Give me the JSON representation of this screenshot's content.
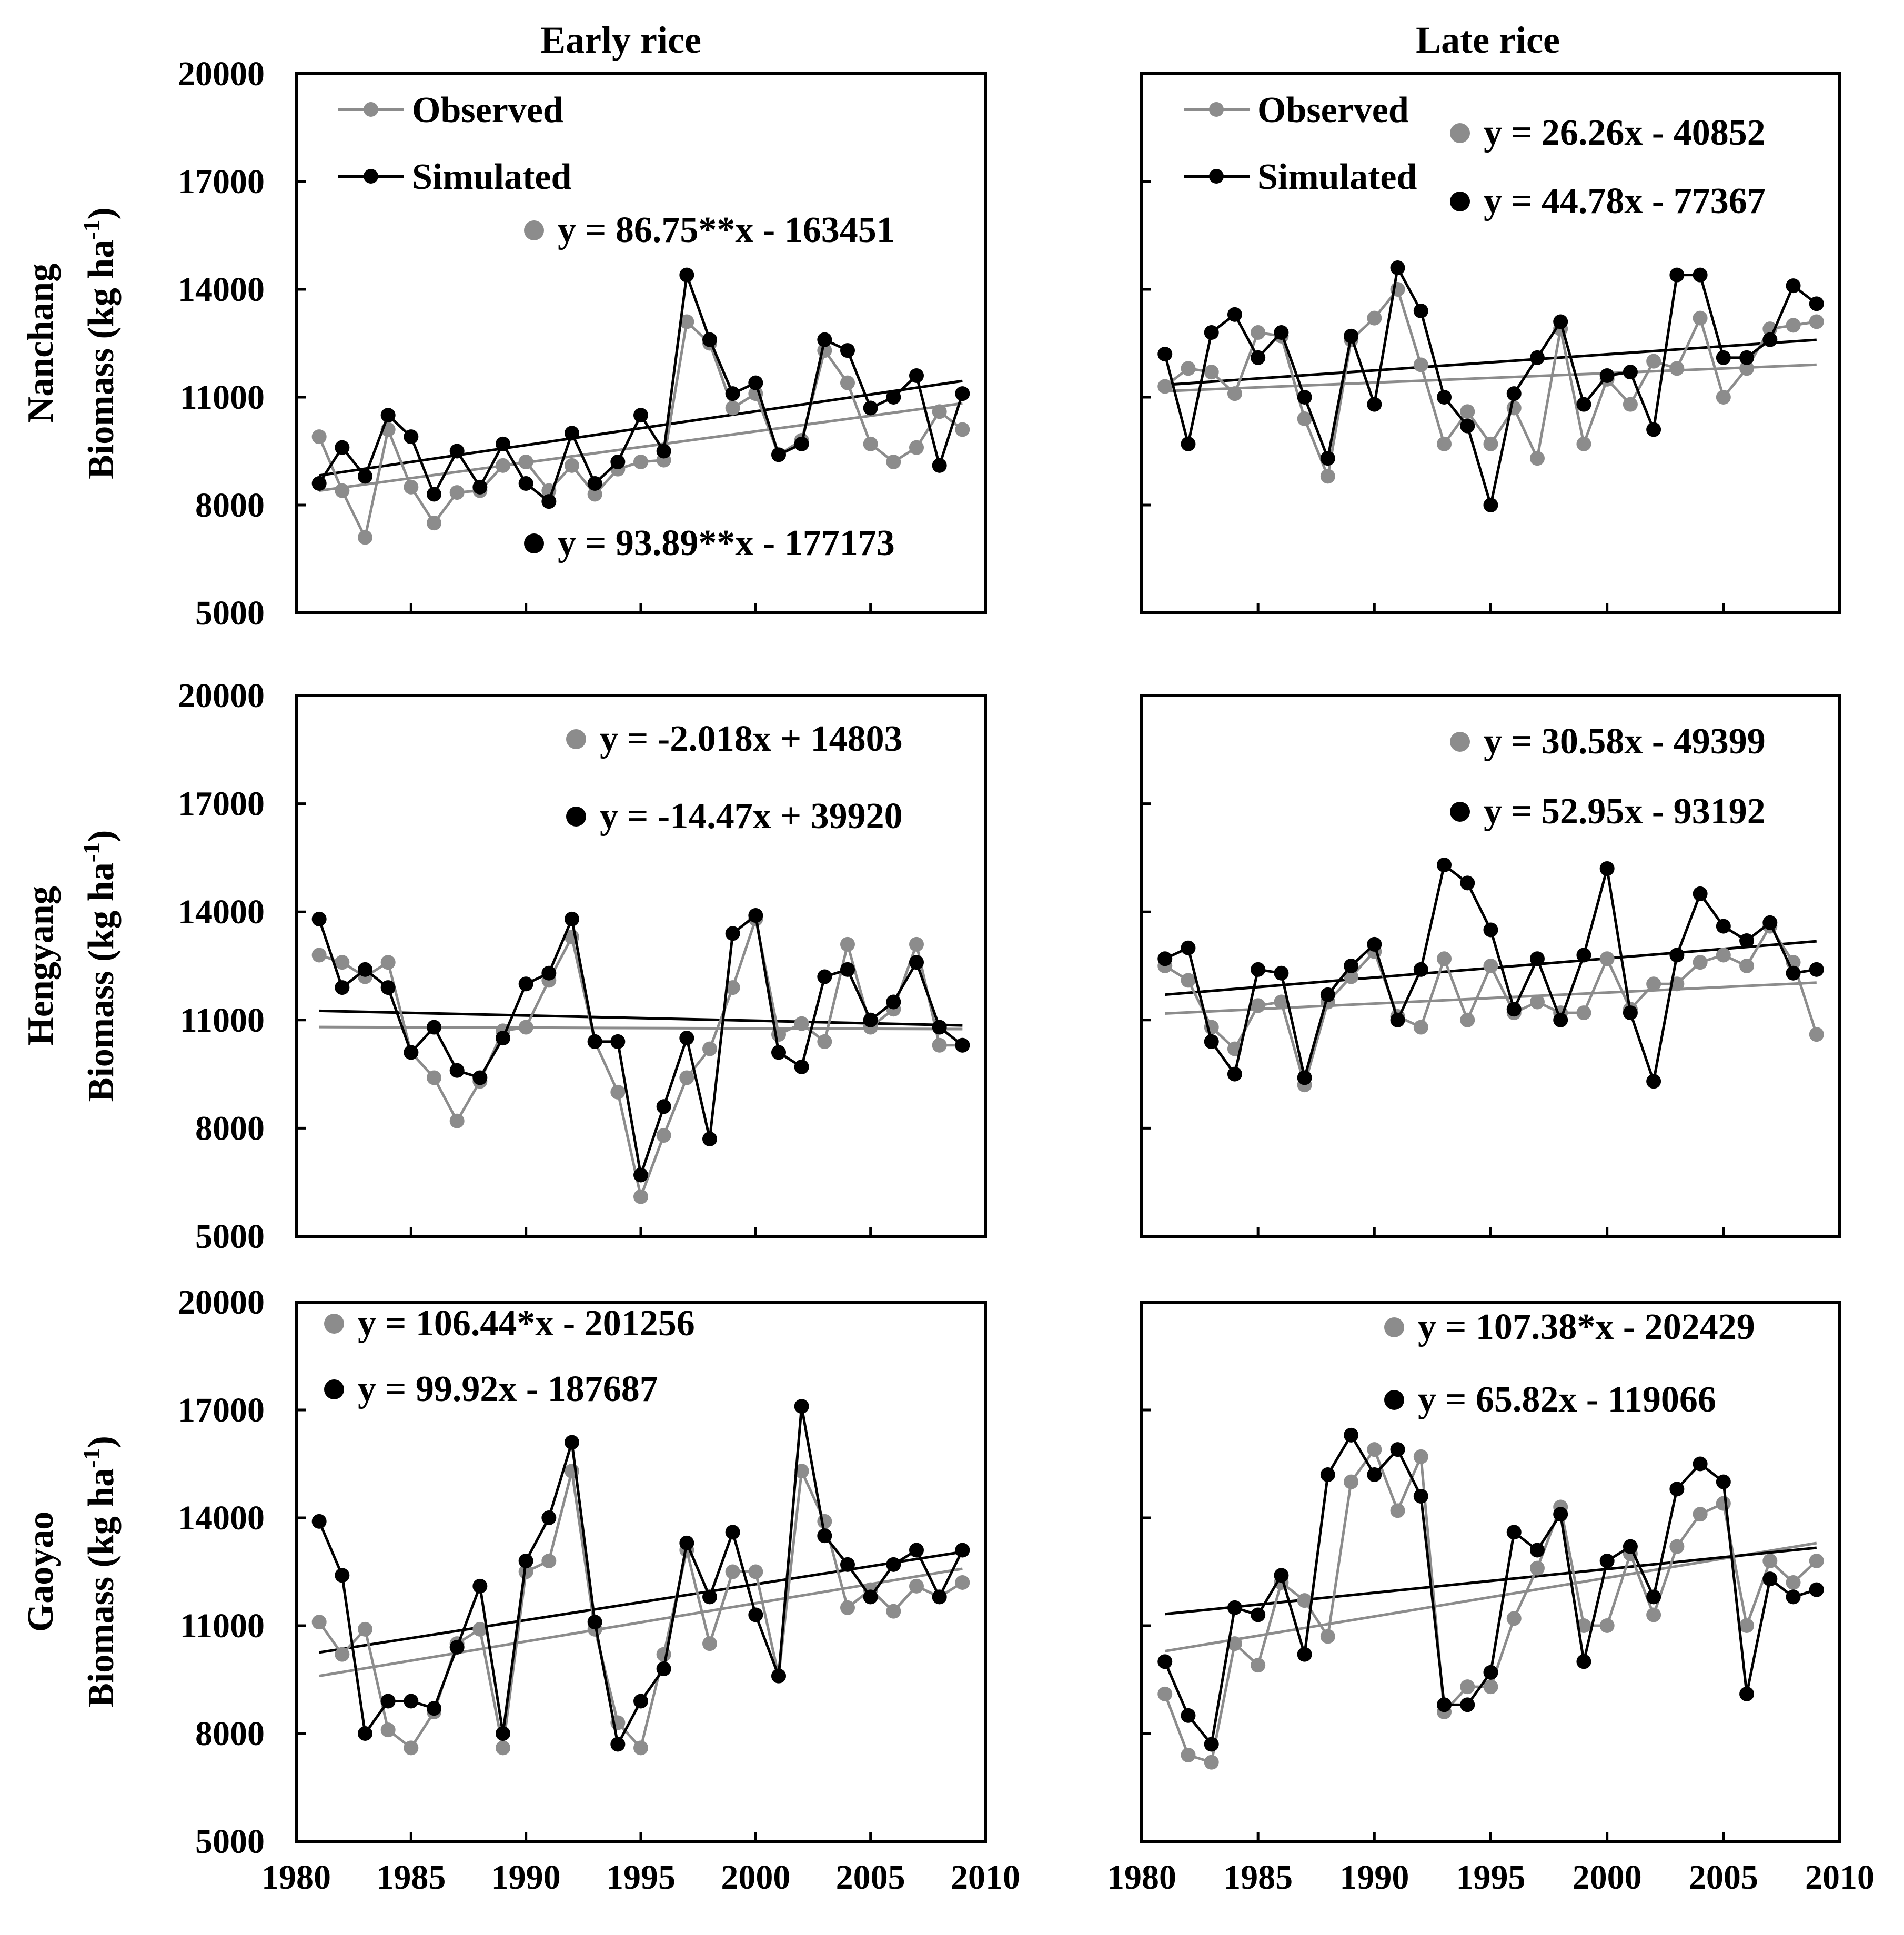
{
  "figure": {
    "column_titles": [
      "Early rice",
      "Late rice"
    ],
    "row_labels": [
      "Nanchang",
      "Hengyang",
      "Gaoyao"
    ],
    "y_axis_label": "Biomass (kg ha",
    "y_axis_label_sup": "-1",
    "y_axis_label_close": ")",
    "y_ticks": [
      "20000",
      "17000",
      "14000",
      "11000",
      "8000",
      "5000"
    ],
    "x_ticks": [
      "1980",
      "1985",
      "1990",
      "1995",
      "2000",
      "2005",
      "2010"
    ],
    "legend": {
      "observed": "Observed",
      "simulated": "Simulated"
    }
  },
  "colors": {
    "observed": "#8c8c8c",
    "simulated": "#000000"
  },
  "chart_data": [
    {
      "type": "line",
      "site": "Nanchang",
      "season": "Early rice",
      "xlim": [
        1980,
        2010
      ],
      "ylim": [
        5000,
        20000
      ],
      "legend": "top-left",
      "x": [
        1981,
        1982,
        1983,
        1984,
        1985,
        1986,
        1987,
        1988,
        1989,
        1990,
        1991,
        1992,
        1993,
        1994,
        1995,
        1996,
        1997,
        1998,
        1999,
        2000,
        2001,
        2002,
        2003,
        2004,
        2005,
        2006,
        2007,
        2008,
        2009
      ],
      "series": [
        {
          "name": "Observed",
          "values": [
            9900,
            8400,
            7100,
            10100,
            8500,
            7500,
            8350,
            8400,
            9100,
            9200,
            8400,
            9100,
            8300,
            9000,
            9200,
            9250,
            13100,
            12500,
            10700,
            11100,
            9400,
            9800,
            12300,
            11400,
            9700,
            9200,
            9600,
            10600,
            10100
          ]
        },
        {
          "name": "Simulated",
          "values": [
            8600,
            9600,
            8800,
            10500,
            9900,
            8300,
            9500,
            8500,
            9700,
            8600,
            8100,
            10000,
            8600,
            9200,
            10500,
            9500,
            14400,
            12600,
            11100,
            11400,
            9400,
            9700,
            12600,
            12300,
            10700,
            11000,
            11600,
            9100,
            11100
          ]
        }
      ],
      "trends": [
        {
          "name": "Observed",
          "equation": "y = 86.75**x - 163451",
          "slope": 86.75,
          "intercept": -163451
        },
        {
          "name": "Simulated",
          "equation": "y = 93.89**x - 177173",
          "slope": 93.89,
          "intercept": -177173
        }
      ]
    },
    {
      "type": "line",
      "site": "Nanchang",
      "season": "Late rice",
      "xlim": [
        1980,
        2010
      ],
      "ylim": [
        5000,
        20000
      ],
      "legend": "top-left",
      "x": [
        1981,
        1982,
        1983,
        1984,
        1985,
        1986,
        1987,
        1988,
        1989,
        1990,
        1991,
        1992,
        1993,
        1994,
        1995,
        1996,
        1997,
        1998,
        1999,
        2000,
        2001,
        2002,
        2003,
        2004,
        2005,
        2006,
        2007,
        2008,
        2009
      ],
      "series": [
        {
          "name": "Observed",
          "values": [
            11300,
            11800,
            11700,
            11100,
            12800,
            12700,
            10400,
            8800,
            12600,
            13200,
            14000,
            11900,
            9700,
            10600,
            9700,
            10700,
            9300,
            12900,
            9700,
            11500,
            10800,
            12000,
            11800,
            13200,
            11000,
            11800,
            12900,
            13000,
            13100
          ]
        },
        {
          "name": "Simulated",
          "values": [
            12200,
            9700,
            12800,
            13300,
            12100,
            12800,
            11000,
            9300,
            12700,
            10800,
            14600,
            13400,
            11000,
            10200,
            8000,
            11100,
            12100,
            13100,
            10800,
            11600,
            11700,
            10100,
            14400,
            14400,
            12100,
            12100,
            12600,
            14100,
            13600
          ]
        }
      ],
      "trends": [
        {
          "name": "Observed",
          "equation": "y = 26.26x - 40852",
          "slope": 26.26,
          "intercept": -40852
        },
        {
          "name": "Simulated",
          "equation": "y = 44.78x - 77367",
          "slope": 44.78,
          "intercept": -77367
        }
      ]
    },
    {
      "type": "line",
      "site": "Hengyang",
      "season": "Early rice",
      "xlim": [
        1980,
        2010
      ],
      "ylim": [
        5000,
        20000
      ],
      "x": [
        1981,
        1982,
        1983,
        1984,
        1985,
        1986,
        1987,
        1988,
        1989,
        1990,
        1991,
        1992,
        1993,
        1994,
        1995,
        1996,
        1997,
        1998,
        1999,
        2000,
        2001,
        2002,
        2003,
        2004,
        2005,
        2006,
        2007,
        2008,
        2009
      ],
      "series": [
        {
          "name": "Observed",
          "values": [
            12800,
            12600,
            12200,
            12600,
            10100,
            9400,
            8200,
            9300,
            10700,
            10800,
            12100,
            13300,
            10400,
            9000,
            6100,
            7800,
            9400,
            10200,
            11900,
            13800,
            10600,
            10900,
            10400,
            13100,
            10800,
            11300,
            13100,
            10300,
            10300
          ]
        },
        {
          "name": "Simulated",
          "values": [
            13800,
            11900,
            12400,
            11900,
            10100,
            10800,
            9600,
            9400,
            10500,
            12000,
            12300,
            13800,
            10400,
            10400,
            6700,
            8600,
            10500,
            7700,
            13400,
            13900,
            10100,
            9700,
            12200,
            12400,
            11000,
            11500,
            12600,
            10800,
            10300
          ]
        }
      ],
      "trends": [
        {
          "name": "Observed",
          "equation": "y = -2.018x + 14803",
          "slope": -2.018,
          "intercept": 14803
        },
        {
          "name": "Simulated",
          "equation": "y = -14.47x + 39920",
          "slope": -14.47,
          "intercept": 39920
        }
      ]
    },
    {
      "type": "line",
      "site": "Hengyang",
      "season": "Late rice",
      "xlim": [
        1980,
        2010
      ],
      "ylim": [
        5000,
        20000
      ],
      "x": [
        1981,
        1982,
        1983,
        1984,
        1985,
        1986,
        1987,
        1988,
        1989,
        1990,
        1991,
        1992,
        1993,
        1994,
        1995,
        1996,
        1997,
        1998,
        1999,
        2000,
        2001,
        2002,
        2003,
        2004,
        2005,
        2006,
        2007,
        2008,
        2009
      ],
      "series": [
        {
          "name": "Observed",
          "values": [
            12500,
            12100,
            10800,
            10200,
            11400,
            11500,
            9200,
            11500,
            12200,
            12900,
            11100,
            10800,
            12700,
            11000,
            12500,
            11200,
            11500,
            11200,
            11200,
            12700,
            11300,
            12000,
            12000,
            12600,
            12800,
            12500,
            13600,
            12600,
            10600
          ]
        },
        {
          "name": "Simulated",
          "values": [
            12700,
            13000,
            10400,
            9500,
            12400,
            12300,
            9400,
            11700,
            12500,
            13100,
            11000,
            12400,
            15300,
            14800,
            13500,
            11300,
            12700,
            11000,
            12800,
            15200,
            11200,
            9300,
            12800,
            14500,
            13600,
            13200,
            13700,
            12300,
            12400
          ]
        }
      ],
      "trends": [
        {
          "name": "Observed",
          "equation": "y = 30.58x - 49399",
          "slope": 30.58,
          "intercept": -49399
        },
        {
          "name": "Simulated",
          "equation": "y = 52.95x - 93192",
          "slope": 52.95,
          "intercept": -93192
        }
      ]
    },
    {
      "type": "line",
      "site": "Gaoyao",
      "season": "Early rice",
      "xlim": [
        1980,
        2010
      ],
      "ylim": [
        5000,
        20000
      ],
      "x": [
        1981,
        1982,
        1983,
        1984,
        1985,
        1986,
        1987,
        1988,
        1989,
        1990,
        1991,
        1992,
        1993,
        1994,
        1995,
        1996,
        1997,
        1998,
        1999,
        2000,
        2001,
        2002,
        2003,
        2004,
        2005,
        2006,
        2007,
        2008,
        2009
      ],
      "series": [
        {
          "name": "Observed",
          "values": [
            11100,
            10200,
            10900,
            8100,
            7600,
            8600,
            10500,
            10900,
            7600,
            12500,
            12800,
            15300,
            10900,
            8300,
            7600,
            10200,
            13100,
            10500,
            12500,
            12500,
            9600,
            15300,
            13900,
            11500,
            12000,
            11400,
            12100,
            11800,
            12200
          ]
        },
        {
          "name": "Simulated",
          "values": [
            13900,
            12400,
            8000,
            8900,
            8900,
            8700,
            10400,
            12100,
            8000,
            12800,
            14000,
            16100,
            11100,
            7700,
            8900,
            9800,
            13300,
            11800,
            13600,
            11300,
            9600,
            17100,
            13500,
            12700,
            11800,
            12700,
            13100,
            11800,
            13100
          ]
        }
      ],
      "trends": [
        {
          "name": "Observed",
          "equation": "y = 106.44*x - 201256",
          "slope": 106.44,
          "intercept": -201256
        },
        {
          "name": "Simulated",
          "equation": "y = 99.92x - 187687",
          "slope": 99.92,
          "intercept": -187687
        }
      ]
    },
    {
      "type": "line",
      "site": "Gaoyao",
      "season": "Late rice",
      "xlim": [
        1980,
        2010
      ],
      "ylim": [
        5000,
        20000
      ],
      "x": [
        1981,
        1982,
        1983,
        1984,
        1985,
        1986,
        1987,
        1988,
        1989,
        1990,
        1991,
        1992,
        1993,
        1994,
        1995,
        1996,
        1997,
        1998,
        1999,
        2000,
        2001,
        2002,
        2003,
        2004,
        2005,
        2006,
        2007,
        2008,
        2009
      ],
      "series": [
        {
          "name": "Observed",
          "values": [
            9100,
            7400,
            7200,
            10500,
            9900,
            12200,
            11700,
            10700,
            15000,
            15900,
            14200,
            15700,
            8600,
            9300,
            9300,
            11200,
            12600,
            14300,
            11000,
            11000,
            13000,
            11300,
            13200,
            14100,
            14400,
            11000,
            12800,
            12200,
            12800
          ]
        },
        {
          "name": "Simulated",
          "values": [
            10000,
            8500,
            7700,
            11500,
            11300,
            12400,
            10200,
            15200,
            16300,
            15200,
            15900,
            14600,
            8800,
            8800,
            9700,
            13600,
            13100,
            14100,
            10000,
            12800,
            13200,
            11800,
            14800,
            15500,
            15000,
            9100,
            12300,
            11800,
            12000
          ]
        }
      ],
      "trends": [
        {
          "name": "Observed",
          "equation": "y = 107.38*x - 202429",
          "slope": 107.38,
          "intercept": -202429
        },
        {
          "name": "Simulated",
          "equation": "y = 65.82x - 119066",
          "slope": 65.82,
          "intercept": -119066
        }
      ]
    }
  ]
}
